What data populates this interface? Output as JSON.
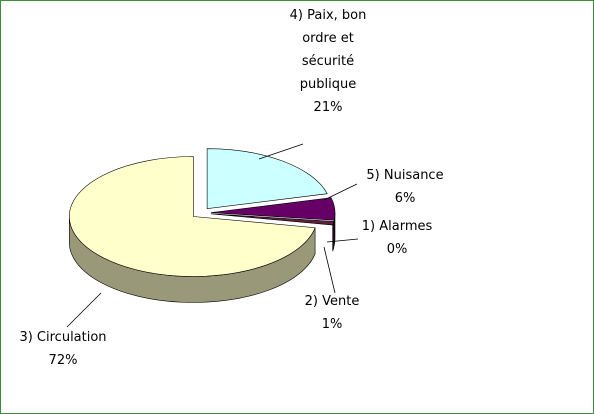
{
  "chart_data": {
    "type": "pie",
    "categories": [
      "1) Alarmes",
      "2) Vente",
      "3) Circulation",
      "4) Paix, bon ordre et sécurité publique",
      "5) Nuisance"
    ],
    "values": [
      0,
      1,
      72,
      21,
      6
    ],
    "value_labels": [
      "0%",
      "1%",
      "72%",
      "21%",
      "6%"
    ],
    "colors": [
      "#5c1f3d",
      "#5c1f3d",
      "#ffffcc",
      "#ccffff",
      "#660066"
    ]
  }
}
